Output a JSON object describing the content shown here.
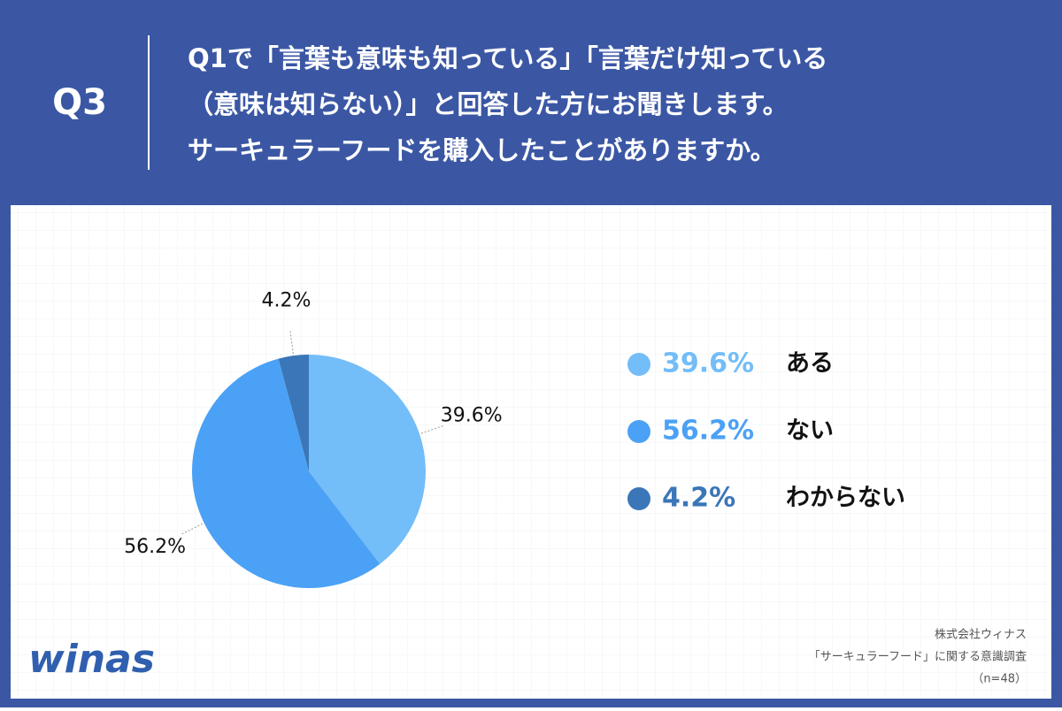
{
  "header": {
    "label": "Q3",
    "title_lines": [
      "Q1で「言葉も意味も知っている」「言葉だけ知っている",
      "（意味は知らない）」と回答した方にお聞きします。",
      "サーキュラーフードを購入したことがありますか。"
    ]
  },
  "chart_data": {
    "type": "pie",
    "categories": [
      "ある",
      "ない",
      "わからない"
    ],
    "values": [
      39.6,
      56.2,
      4.2
    ],
    "value_labels": [
      "39.6%",
      "56.2%",
      "4.2%"
    ],
    "colors": [
      "#73bdf8",
      "#4ba1f5",
      "#3a76b8"
    ]
  },
  "logo": "winas",
  "footer": {
    "lines": [
      "株式会社ウィナス",
      "「サーキュラーフード」に関する意識調査",
      "（n=48）"
    ]
  }
}
